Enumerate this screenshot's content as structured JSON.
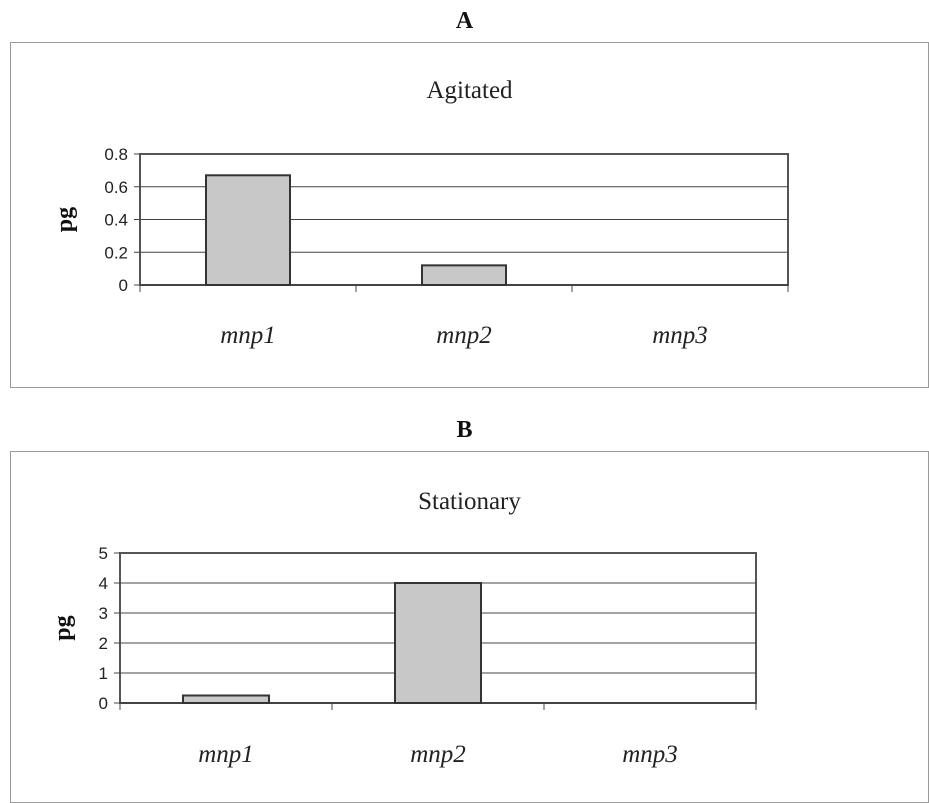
{
  "chart_data": [
    {
      "type": "bar",
      "panel": "A",
      "title": "Agitated",
      "ylabel": "pg",
      "xlabel": "",
      "categories": [
        "mnp1",
        "mnp2",
        "mnp3"
      ],
      "values": [
        0.67,
        0.12,
        0
      ],
      "ylim": [
        0,
        0.8
      ],
      "yticks": [
        0,
        0.2,
        0.4,
        0.6,
        0.8
      ],
      "ytick_labels": [
        "0",
        "0.2",
        "0.4",
        "0.6",
        "0.8"
      ],
      "grid": true,
      "bar_color": "#c8c8c8"
    },
    {
      "type": "bar",
      "panel": "B",
      "title": "Stationary",
      "ylabel": "pg",
      "xlabel": "",
      "categories": [
        "mnp1",
        "mnp2",
        "mnp3"
      ],
      "values": [
        0.25,
        4.0,
        0
      ],
      "ylim": [
        0,
        5
      ],
      "yticks": [
        0,
        1,
        2,
        3,
        4,
        5
      ],
      "ytick_labels": [
        "0",
        "1",
        "2",
        "3",
        "4",
        "5"
      ],
      "grid": true,
      "bar_color": "#c8c8c8"
    }
  ]
}
